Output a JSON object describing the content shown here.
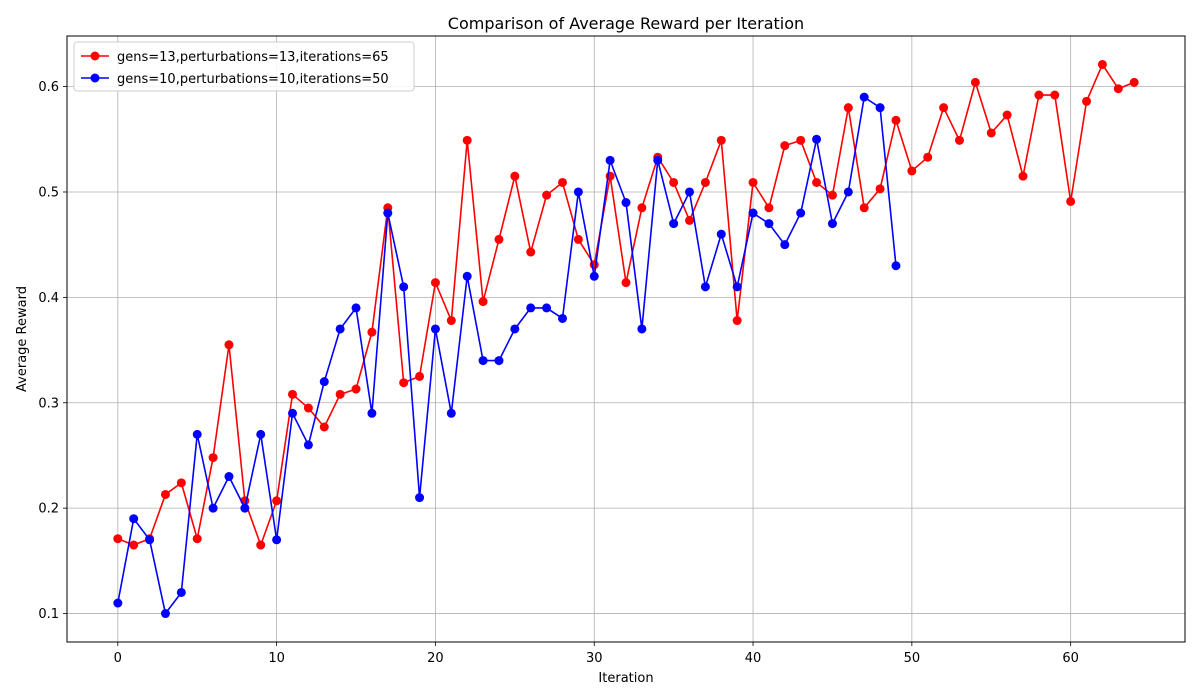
{
  "chart_data": {
    "type": "line",
    "title": "Comparison of Average Reward per Iteration",
    "xlabel": "Iteration",
    "ylabel": "Average Reward",
    "xlim": [
      -3.2,
      67.2
    ],
    "ylim": [
      0.073,
      0.648
    ],
    "xticks": [
      0,
      10,
      20,
      30,
      40,
      50,
      60
    ],
    "yticks": [
      0.1,
      0.2,
      0.3,
      0.4,
      0.5,
      0.6
    ],
    "xtick_labels": [
      "0",
      "10",
      "20",
      "30",
      "40",
      "50",
      "60"
    ],
    "ytick_labels": [
      "0.1",
      "0.2",
      "0.3",
      "0.4",
      "0.5",
      "0.6"
    ],
    "grid": true,
    "legend_position": "upper-left",
    "series": [
      {
        "name": "gens=13,perturbations=13,iterations=65",
        "color": "#ff0000",
        "marker": "circle",
        "x": [
          0,
          1,
          2,
          3,
          4,
          5,
          6,
          7,
          8,
          9,
          10,
          11,
          12,
          13,
          14,
          15,
          16,
          17,
          18,
          19,
          20,
          21,
          22,
          23,
          24,
          25,
          26,
          27,
          28,
          29,
          30,
          31,
          32,
          33,
          34,
          35,
          36,
          37,
          38,
          39,
          40,
          41,
          42,
          43,
          44,
          45,
          46,
          47,
          48,
          49,
          50,
          51,
          52,
          53,
          54,
          55,
          56,
          57,
          58,
          59,
          60,
          61,
          62,
          63,
          64
        ],
        "y": [
          0.171,
          0.165,
          0.171,
          0.213,
          0.224,
          0.171,
          0.248,
          0.355,
          0.207,
          0.165,
          0.207,
          0.308,
          0.295,
          0.277,
          0.308,
          0.313,
          0.367,
          0.485,
          0.319,
          0.325,
          0.414,
          0.378,
          0.549,
          0.396,
          0.455,
          0.515,
          0.443,
          0.497,
          0.509,
          0.455,
          0.431,
          0.515,
          0.414,
          0.485,
          0.533,
          0.509,
          0.473,
          0.509,
          0.549,
          0.378,
          0.509,
          0.485,
          0.544,
          0.549,
          0.509,
          0.497,
          0.58,
          0.485,
          0.503,
          0.568,
          0.52,
          0.533,
          0.58,
          0.549,
          0.604,
          0.556,
          0.573,
          0.515,
          0.592,
          0.592,
          0.491,
          0.586,
          0.621,
          0.598,
          0.604
        ]
      },
      {
        "name": "gens=10,perturbations=10,iterations=50",
        "color": "#0000ff",
        "marker": "circle",
        "x": [
          0,
          1,
          2,
          3,
          4,
          5,
          6,
          7,
          8,
          9,
          10,
          11,
          12,
          13,
          14,
          15,
          16,
          17,
          18,
          19,
          20,
          21,
          22,
          23,
          24,
          25,
          26,
          27,
          28,
          29,
          30,
          31,
          32,
          33,
          34,
          35,
          36,
          37,
          38,
          39,
          40,
          41,
          42,
          43,
          44,
          45,
          46,
          47,
          48,
          49
        ],
        "y": [
          0.11,
          0.19,
          0.17,
          0.1,
          0.12,
          0.27,
          0.2,
          0.23,
          0.2,
          0.27,
          0.17,
          0.29,
          0.26,
          0.32,
          0.37,
          0.39,
          0.29,
          0.48,
          0.41,
          0.21,
          0.37,
          0.29,
          0.42,
          0.34,
          0.34,
          0.37,
          0.39,
          0.39,
          0.38,
          0.5,
          0.42,
          0.53,
          0.49,
          0.37,
          0.53,
          0.47,
          0.5,
          0.41,
          0.46,
          0.41,
          0.48,
          0.47,
          0.45,
          0.48,
          0.55,
          0.47,
          0.5,
          0.59,
          0.58,
          0.43
        ]
      }
    ]
  }
}
